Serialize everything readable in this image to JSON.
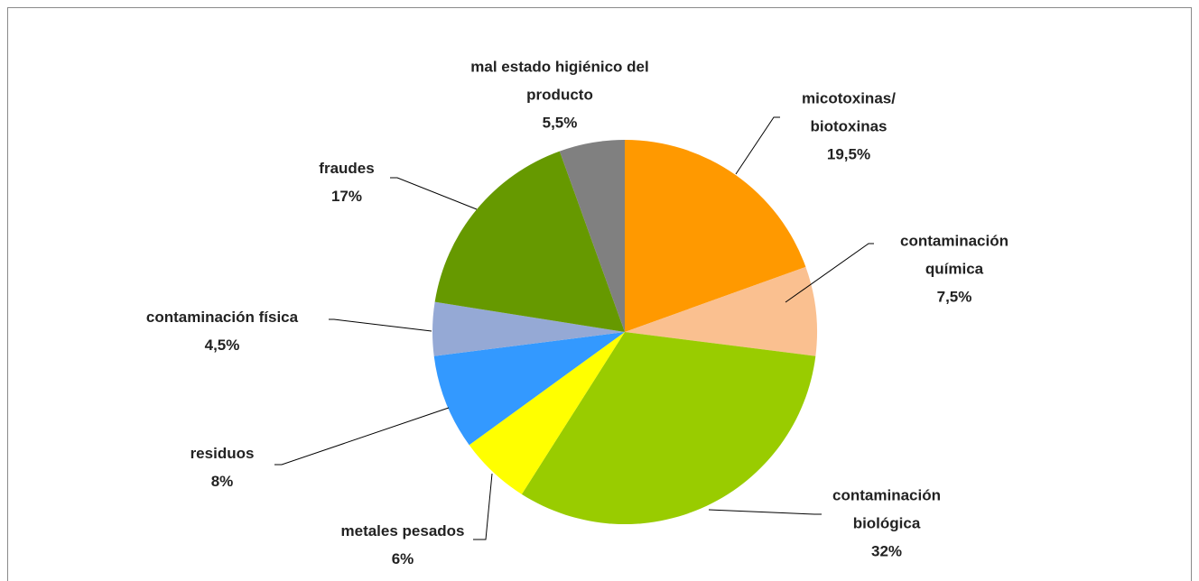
{
  "chart_data": {
    "type": "pie",
    "categories": [
      "micotoxinas/ biotoxinas",
      "contaminación química",
      "contaminación biológica",
      "metales pesados",
      "residuos",
      "contaminación física",
      "fraudes",
      "mal estado higiénico del producto"
    ],
    "values": [
      19.5,
      7.5,
      32,
      6,
      8,
      4.5,
      17,
      5.5
    ],
    "value_labels": [
      "19,5%",
      "7,5%",
      "32%",
      "6%",
      "8%",
      "4,5%",
      "17%",
      "5,5%"
    ],
    "colors": [
      "#ff9900",
      "#fac090",
      "#99cc00",
      "#ffff00",
      "#3399ff",
      "#95a9d5",
      "#669900",
      "#808080"
    ]
  }
}
